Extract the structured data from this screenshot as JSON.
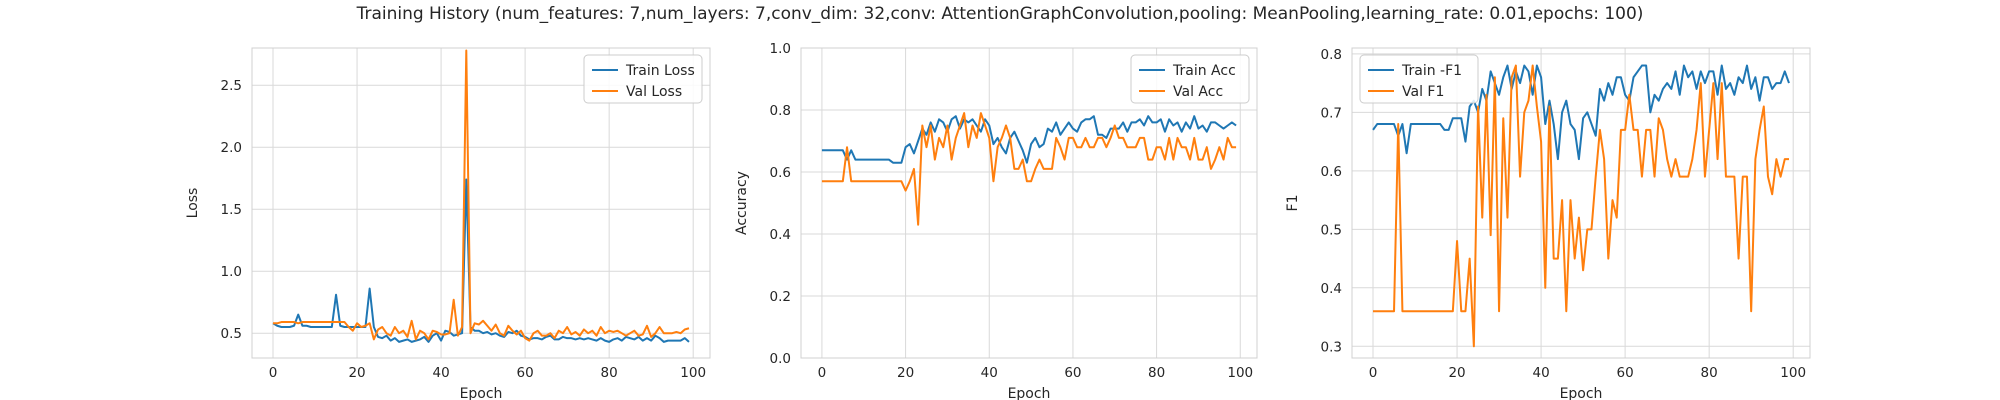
{
  "figure": {
    "title": "Training History (num_features: 7,num_layers: 7,conv_dim: 32,conv: AttentionGraphConvolution,pooling: MeanPooling,learning_rate: 0.01,epochs: 100)"
  },
  "colors": {
    "train": "#1f77b4",
    "val": "#ff7f0e",
    "grid": "#d9d9d9",
    "frame": "#d0d0d0",
    "text": "#262626"
  },
  "chart_data": [
    {
      "type": "line",
      "xlabel": "Epoch",
      "ylabel": "Loss",
      "xlim": [
        -5,
        104
      ],
      "ylim": [
        0.3,
        2.8
      ],
      "xticks": [
        0,
        20,
        40,
        60,
        80,
        100
      ],
      "yticks": [
        0.5,
        1.0,
        1.5,
        2.0,
        2.5
      ],
      "ytick_labels": [
        "0.5",
        "1.0",
        "1.5",
        "2.0",
        "2.5"
      ],
      "legend": "top-right",
      "grid": true,
      "series": [
        {
          "name": "Train Loss",
          "color": "#1f77b4",
          "values": [
            0.58,
            0.56,
            0.55,
            0.55,
            0.55,
            0.56,
            0.65,
            0.56,
            0.56,
            0.55,
            0.55,
            0.55,
            0.55,
            0.55,
            0.55,
            0.81,
            0.56,
            0.55,
            0.55,
            0.55,
            0.55,
            0.55,
            0.55,
            0.86,
            0.55,
            0.47,
            0.46,
            0.48,
            0.44,
            0.46,
            0.43,
            0.44,
            0.45,
            0.43,
            0.44,
            0.45,
            0.47,
            0.43,
            0.48,
            0.5,
            0.44,
            0.52,
            0.51,
            0.48,
            0.49,
            0.5,
            1.74,
            0.55,
            0.52,
            0.52,
            0.5,
            0.51,
            0.49,
            0.5,
            0.48,
            0.47,
            0.51,
            0.5,
            0.52,
            0.48,
            0.47,
            0.45,
            0.46,
            0.46,
            0.45,
            0.47,
            0.48,
            0.45,
            0.45,
            0.47,
            0.46,
            0.46,
            0.45,
            0.46,
            0.45,
            0.46,
            0.45,
            0.44,
            0.46,
            0.44,
            0.43,
            0.45,
            0.46,
            0.44,
            0.47,
            0.46,
            0.45,
            0.47,
            0.44,
            0.46,
            0.44,
            0.48,
            0.46,
            0.43,
            0.44,
            0.44,
            0.44,
            0.44,
            0.46,
            0.43
          ]
        },
        {
          "name": "Val Loss",
          "color": "#ff7f0e",
          "values": [
            0.58,
            0.58,
            0.59,
            0.59,
            0.59,
            0.59,
            0.58,
            0.59,
            0.59,
            0.59,
            0.59,
            0.59,
            0.59,
            0.59,
            0.59,
            0.59,
            0.59,
            0.59,
            0.55,
            0.52,
            0.58,
            0.55,
            0.56,
            0.58,
            0.45,
            0.53,
            0.55,
            0.5,
            0.48,
            0.55,
            0.5,
            0.52,
            0.47,
            0.6,
            0.45,
            0.52,
            0.5,
            0.45,
            0.52,
            0.51,
            0.49,
            0.49,
            0.5,
            0.77,
            0.48,
            0.55,
            2.78,
            0.5,
            0.58,
            0.57,
            0.6,
            0.56,
            0.52,
            0.57,
            0.5,
            0.48,
            0.56,
            0.52,
            0.49,
            0.52,
            0.46,
            0.44,
            0.5,
            0.52,
            0.48,
            0.48,
            0.5,
            0.46,
            0.52,
            0.5,
            0.55,
            0.49,
            0.51,
            0.48,
            0.53,
            0.5,
            0.52,
            0.48,
            0.55,
            0.5,
            0.52,
            0.51,
            0.52,
            0.5,
            0.48,
            0.5,
            0.52,
            0.48,
            0.49,
            0.56,
            0.47,
            0.5,
            0.55,
            0.5,
            0.5,
            0.5,
            0.51,
            0.5,
            0.53,
            0.54
          ]
        }
      ]
    },
    {
      "type": "line",
      "xlabel": "Epoch",
      "ylabel": "Accuracy",
      "xlim": [
        -5,
        104
      ],
      "ylim": [
        0.0,
        1.0
      ],
      "xticks": [
        0,
        20,
        40,
        60,
        80,
        100
      ],
      "yticks": [
        0.0,
        0.2,
        0.4,
        0.6,
        0.8,
        1.0
      ],
      "ytick_labels": [
        "0.0",
        "0.2",
        "0.4",
        "0.6",
        "0.8",
        "1.0"
      ],
      "legend": "top-right",
      "grid": true,
      "series": [
        {
          "name": "Train Acc",
          "color": "#1f77b4",
          "values": [
            0.67,
            0.67,
            0.67,
            0.67,
            0.67,
            0.67,
            0.64,
            0.67,
            0.64,
            0.64,
            0.64,
            0.64,
            0.64,
            0.64,
            0.64,
            0.64,
            0.64,
            0.63,
            0.63,
            0.63,
            0.68,
            0.69,
            0.66,
            0.7,
            0.74,
            0.72,
            0.76,
            0.73,
            0.77,
            0.76,
            0.73,
            0.77,
            0.78,
            0.74,
            0.77,
            0.76,
            0.77,
            0.75,
            0.73,
            0.77,
            0.75,
            0.69,
            0.71,
            0.68,
            0.66,
            0.71,
            0.73,
            0.7,
            0.67,
            0.63,
            0.69,
            0.71,
            0.68,
            0.69,
            0.74,
            0.73,
            0.76,
            0.72,
            0.74,
            0.76,
            0.74,
            0.73,
            0.76,
            0.77,
            0.77,
            0.78,
            0.72,
            0.72,
            0.71,
            0.74,
            0.74,
            0.74,
            0.76,
            0.73,
            0.76,
            0.76,
            0.77,
            0.75,
            0.78,
            0.76,
            0.76,
            0.77,
            0.73,
            0.77,
            0.75,
            0.76,
            0.73,
            0.76,
            0.74,
            0.78,
            0.74,
            0.75,
            0.73,
            0.76,
            0.76,
            0.75,
            0.74,
            0.75,
            0.76,
            0.75
          ]
        },
        {
          "name": "Val Acc",
          "color": "#ff7f0e",
          "values": [
            0.57,
            0.57,
            0.57,
            0.57,
            0.57,
            0.57,
            0.68,
            0.57,
            0.57,
            0.57,
            0.57,
            0.57,
            0.57,
            0.57,
            0.57,
            0.57,
            0.57,
            0.57,
            0.57,
            0.57,
            0.54,
            0.57,
            0.61,
            0.43,
            0.75,
            0.68,
            0.75,
            0.64,
            0.71,
            0.68,
            0.75,
            0.64,
            0.71,
            0.75,
            0.79,
            0.68,
            0.75,
            0.71,
            0.79,
            0.75,
            0.71,
            0.57,
            0.68,
            0.71,
            0.75,
            0.71,
            0.61,
            0.61,
            0.64,
            0.57,
            0.57,
            0.61,
            0.64,
            0.61,
            0.61,
            0.61,
            0.71,
            0.68,
            0.64,
            0.71,
            0.71,
            0.68,
            0.68,
            0.71,
            0.68,
            0.68,
            0.71,
            0.71,
            0.68,
            0.71,
            0.75,
            0.71,
            0.71,
            0.68,
            0.68,
            0.68,
            0.71,
            0.71,
            0.64,
            0.64,
            0.68,
            0.68,
            0.64,
            0.71,
            0.64,
            0.71,
            0.68,
            0.68,
            0.64,
            0.71,
            0.64,
            0.64,
            0.68,
            0.61,
            0.64,
            0.68,
            0.64,
            0.71,
            0.68,
            0.68
          ]
        }
      ]
    },
    {
      "type": "line",
      "xlabel": "Epoch",
      "ylabel": "F1",
      "xlim": [
        -5,
        104
      ],
      "ylim": [
        0.28,
        0.81
      ],
      "xticks": [
        0,
        20,
        40,
        60,
        80,
        100
      ],
      "yticks": [
        0.3,
        0.4,
        0.5,
        0.6,
        0.7,
        0.8
      ],
      "ytick_labels": [
        "0.3",
        "0.4",
        "0.5",
        "0.6",
        "0.7",
        "0.8"
      ],
      "legend": "top-left",
      "grid": true,
      "series": [
        {
          "name": "Train -F1",
          "color": "#1f77b4",
          "values": [
            0.67,
            0.68,
            0.68,
            0.68,
            0.68,
            0.68,
            0.66,
            0.68,
            0.63,
            0.68,
            0.68,
            0.68,
            0.68,
            0.68,
            0.68,
            0.68,
            0.68,
            0.67,
            0.67,
            0.69,
            0.69,
            0.69,
            0.65,
            0.71,
            0.72,
            0.7,
            0.74,
            0.72,
            0.77,
            0.75,
            0.73,
            0.76,
            0.78,
            0.74,
            0.77,
            0.75,
            0.78,
            0.77,
            0.73,
            0.78,
            0.76,
            0.68,
            0.72,
            0.68,
            0.62,
            0.7,
            0.72,
            0.68,
            0.67,
            0.62,
            0.69,
            0.7,
            0.68,
            0.66,
            0.74,
            0.72,
            0.75,
            0.73,
            0.76,
            0.76,
            0.73,
            0.72,
            0.76,
            0.77,
            0.78,
            0.78,
            0.7,
            0.73,
            0.72,
            0.74,
            0.75,
            0.74,
            0.77,
            0.73,
            0.78,
            0.76,
            0.77,
            0.74,
            0.77,
            0.75,
            0.77,
            0.77,
            0.73,
            0.78,
            0.74,
            0.75,
            0.73,
            0.76,
            0.75,
            0.78,
            0.74,
            0.76,
            0.72,
            0.76,
            0.76,
            0.74,
            0.75,
            0.75,
            0.77,
            0.75
          ]
        },
        {
          "name": "Val F1",
          "color": "#ff7f0e",
          "values": [
            0.36,
            0.36,
            0.36,
            0.36,
            0.36,
            0.36,
            0.68,
            0.36,
            0.36,
            0.36,
            0.36,
            0.36,
            0.36,
            0.36,
            0.36,
            0.36,
            0.36,
            0.36,
            0.36,
            0.36,
            0.48,
            0.36,
            0.36,
            0.45,
            0.3,
            0.71,
            0.52,
            0.73,
            0.49,
            0.76,
            0.36,
            0.69,
            0.52,
            0.76,
            0.78,
            0.59,
            0.7,
            0.72,
            0.78,
            0.71,
            0.65,
            0.4,
            0.71,
            0.45,
            0.45,
            0.55,
            0.36,
            0.55,
            0.45,
            0.52,
            0.43,
            0.5,
            0.5,
            0.59,
            0.67,
            0.62,
            0.45,
            0.55,
            0.52,
            0.67,
            0.67,
            0.73,
            0.67,
            0.67,
            0.59,
            0.67,
            0.67,
            0.59,
            0.69,
            0.67,
            0.62,
            0.59,
            0.62,
            0.59,
            0.59,
            0.59,
            0.62,
            0.67,
            0.75,
            0.59,
            0.67,
            0.75,
            0.62,
            0.75,
            0.59,
            0.59,
            0.59,
            0.45,
            0.59,
            0.59,
            0.36,
            0.62,
            0.67,
            0.71,
            0.59,
            0.56,
            0.62,
            0.59,
            0.62,
            0.62
          ]
        }
      ]
    }
  ]
}
